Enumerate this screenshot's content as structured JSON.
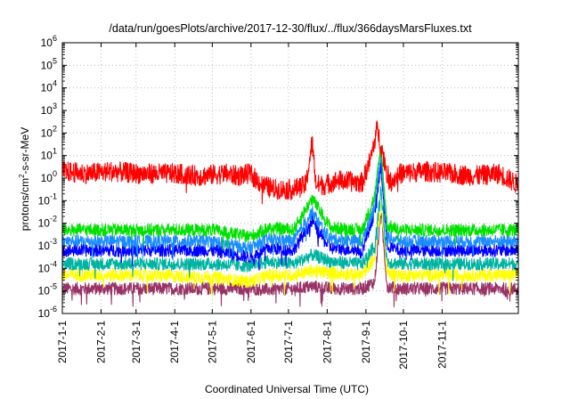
{
  "chart_data": {
    "type": "line",
    "title": "/data/run/goesPlots/archive/2017-12-30/flux/../flux/366daysMarsFluxes.txt",
    "xlabel": "Coordinated Universal Time (UTC)",
    "ylabel": {
      "base": "protons/cm",
      "sup": "2",
      "rest": "-s-sr-MeV"
    },
    "log_y": true,
    "ylim_exp": [
      -6,
      6
    ],
    "y_tick_exponents": [
      -6,
      -5,
      -4,
      -3,
      -2,
      -1,
      0,
      1,
      2,
      3,
      4,
      5,
      6
    ],
    "y_tick_base": "10",
    "xlim_days": [
      0,
      365
    ],
    "grid": true,
    "x_ticks": [
      {
        "label": "2017-1-1",
        "day": 0
      },
      {
        "label": "2017-2-1",
        "day": 31
      },
      {
        "label": "2017-3-1",
        "day": 59
      },
      {
        "label": "2017-4-1",
        "day": 90
      },
      {
        "label": "2017-5-1",
        "day": 120
      },
      {
        "label": "2017-6-1",
        "day": 151
      },
      {
        "label": "2017-7-1",
        "day": 181
      },
      {
        "label": "2017-8-1",
        "day": 212
      },
      {
        "label": "2017-9-1",
        "day": 243
      },
      {
        "label": "2017-10-1",
        "day": 273
      },
      {
        "label": "2017-11-1",
        "day": 304
      }
    ],
    "series": [
      {
        "color": "#993366",
        "baseline_log10": -4.9,
        "x": [
          0,
          60,
          120,
          150,
          165,
          185,
          200,
          215,
          240,
          250,
          255,
          260,
          270,
          300,
          330,
          365
        ],
        "y_log10": [
          -4.9,
          -4.9,
          -4.9,
          -4.9,
          -4.95,
          -4.9,
          -4.8,
          -4.9,
          -4.9,
          -4.6,
          -1.5,
          -4.8,
          -4.9,
          -4.9,
          -4.9,
          -4.9
        ]
      },
      {
        "color": "#ffff00",
        "baseline_log10": -4.3,
        "x": [
          0,
          60,
          120,
          150,
          165,
          185,
          200,
          215,
          240,
          250,
          255,
          260,
          270,
          300,
          330,
          365
        ],
        "y_log10": [
          -4.3,
          -4.3,
          -4.4,
          -4.6,
          -4.3,
          -4.3,
          -4.1,
          -4.2,
          -4.3,
          -3.5,
          -1.0,
          -4.2,
          -4.3,
          -4.3,
          -4.3,
          -4.3
        ]
      },
      {
        "color": "#00b3a0",
        "baseline_log10": -3.8,
        "x": [
          0,
          60,
          120,
          150,
          165,
          185,
          200,
          215,
          240,
          250,
          255,
          260,
          270,
          300,
          330,
          365
        ],
        "y_log10": [
          -3.8,
          -3.8,
          -3.8,
          -3.9,
          -3.7,
          -3.8,
          -3.4,
          -3.7,
          -3.8,
          -3.0,
          -0.5,
          -3.7,
          -3.8,
          -3.8,
          -3.8,
          -3.8
        ]
      },
      {
        "color": "#0000ff",
        "baseline_log10": -3.2,
        "x": [
          0,
          60,
          120,
          150,
          165,
          185,
          200,
          210,
          215,
          240,
          250,
          255,
          260,
          270,
          300,
          330,
          365
        ],
        "y_log10": [
          -3.2,
          -3.2,
          -3.2,
          -3.5,
          -3.1,
          -3.2,
          -1.9,
          -2.8,
          -3.1,
          -3.2,
          -1.5,
          0.5,
          -3.0,
          -3.2,
          -3.2,
          -3.2,
          -3.2
        ]
      },
      {
        "color": "#1a8cff",
        "baseline_log10": -2.8,
        "x": [
          0,
          60,
          120,
          150,
          165,
          185,
          200,
          210,
          215,
          240,
          250,
          255,
          260,
          270,
          300,
          330,
          365
        ],
        "y_log10": [
          -2.8,
          -2.8,
          -2.8,
          -3.1,
          -2.7,
          -2.8,
          -1.5,
          -2.4,
          -2.7,
          -2.8,
          -1.2,
          1.0,
          -2.6,
          -2.8,
          -2.8,
          -2.8,
          -2.8
        ]
      },
      {
        "color": "#00e000",
        "baseline_log10": -2.3,
        "x": [
          0,
          60,
          120,
          150,
          165,
          185,
          200,
          210,
          215,
          240,
          250,
          255,
          260,
          270,
          300,
          330,
          365
        ],
        "y_log10": [
          -2.3,
          -2.3,
          -2.3,
          -2.6,
          -2.2,
          -2.3,
          -0.9,
          -1.8,
          -2.2,
          -2.3,
          -0.8,
          1.4,
          -2.1,
          -2.3,
          -2.3,
          -2.3,
          -2.3
        ]
      },
      {
        "color": "#ff0000",
        "baseline_log10": 0.2,
        "x": [
          0,
          20,
          40,
          60,
          90,
          110,
          130,
          140,
          150,
          160,
          170,
          185,
          195,
          200,
          203,
          210,
          220,
          240,
          247,
          252,
          256,
          262,
          270,
          290,
          310,
          330,
          350,
          365
        ],
        "y_log10": [
          0.3,
          0.2,
          0.3,
          0.2,
          0.2,
          0.1,
          0.2,
          0.1,
          0.2,
          -0.3,
          -0.5,
          -0.5,
          -0.3,
          1.6,
          -0.3,
          -0.3,
          -0.1,
          -0.2,
          0.9,
          2.2,
          1.2,
          -0.2,
          0.2,
          0.3,
          0.2,
          0.1,
          0.2,
          -0.3
        ]
      }
    ]
  }
}
